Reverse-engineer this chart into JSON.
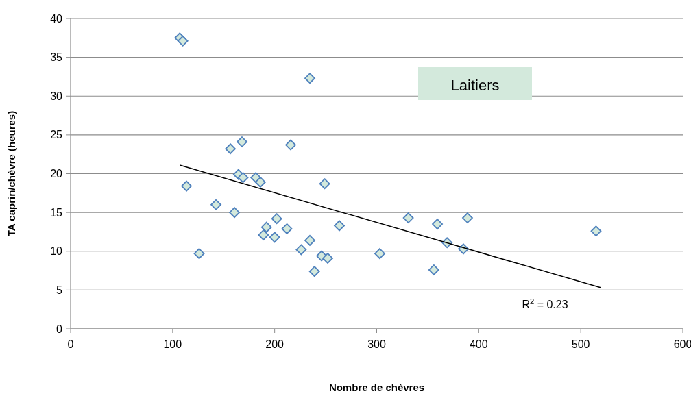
{
  "chart_data": {
    "type": "scatter",
    "xlabel": "Nombre de chèvres",
    "ylabel": "TA caprin/chèvre (heures)",
    "xlim": [
      0,
      600
    ],
    "xticks": [
      0,
      100,
      200,
      300,
      400,
      500,
      600
    ],
    "ylim": [
      0,
      40
    ],
    "yticks": [
      0,
      5,
      10,
      15,
      20,
      25,
      30,
      35,
      40
    ],
    "grid": "y",
    "annotations": [
      "Laitiers",
      "R$^{2}$ = 0.23"
    ],
    "series": [
      {
        "marker": "diamond",
        "color": "#d3e9dc",
        "x": [
          107,
          110,
          234.5,
          156.6,
          168,
          215.7,
          164.5,
          169,
          181.5,
          186,
          113.6,
          249,
          142.5,
          160.6,
          202,
          192,
          189,
          200,
          212,
          234.5,
          226,
          246,
          252,
          239,
          126,
          263.4,
          331,
          303,
          359.5,
          389,
          369,
          385,
          356,
          515
        ],
        "values": [
          37.5,
          37.1,
          32.3,
          23.2,
          24.1,
          23.7,
          19.9,
          19.5,
          19.5,
          18.9,
          18.4,
          18.7,
          16.0,
          15.0,
          14.2,
          13.1,
          12.1,
          11.8,
          12.9,
          11.4,
          10.2,
          9.4,
          9.1,
          7.4,
          9.7,
          13.3,
          14.3,
          9.7,
          13.5,
          14.3,
          11.1,
          10.3,
          7.6,
          12.6
        ]
      },
      {
        "type": "line",
        "color": "#000000",
        "x": [
          107,
          520
        ],
        "values": [
          21.1,
          5.3
        ]
      }
    ]
  }
}
